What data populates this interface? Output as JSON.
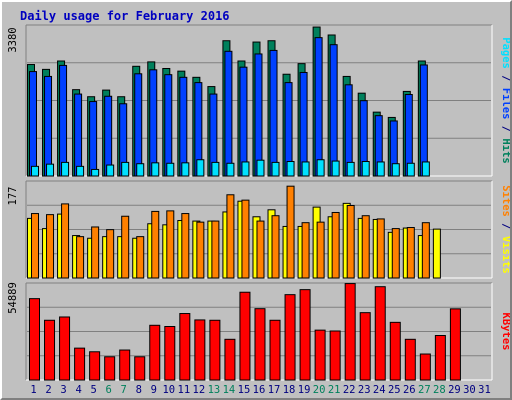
{
  "title": "Daily usage for February 2016",
  "colors": {
    "background": "#c0c0c0",
    "hits": "#00805c",
    "files": "#0040ff",
    "pages": "#00e0ff",
    "visits": "#ffff00",
    "sites": "#ff8000",
    "kbytes": "#ff0000",
    "title": "#0000c0",
    "weekend_day": "#00805c",
    "weekday": "#000080"
  },
  "chart_data": [
    {
      "type": "bar",
      "name": "hits-files-pages",
      "ymax_label": "3380",
      "ylim": [
        0,
        3380
      ],
      "right_label_parts": [
        {
          "text": "Pages",
          "color": "#00e0ff"
        },
        {
          "text": " / ",
          "color": "#000080"
        },
        {
          "text": "Files",
          "color": "#0040ff"
        },
        {
          "text": " / ",
          "color": "#000080"
        },
        {
          "text": "Hits",
          "color": "#00805c"
        }
      ],
      "series": [
        {
          "name": "Hits",
          "values": [
            2540,
            2430,
            2620,
            1970,
            1810,
            1960,
            1810,
            2500,
            2600,
            2450,
            2390,
            2250,
            2040,
            3080,
            2620,
            3050,
            3080,
            2320,
            2560,
            3390,
            3210,
            2270,
            1890,
            1460,
            1340,
            1930,
            2620,
            0,
            0
          ]
        },
        {
          "name": "Files",
          "values": [
            2380,
            2270,
            2520,
            1870,
            1700,
            1820,
            1650,
            2330,
            2420,
            2310,
            2250,
            2130,
            1870,
            2840,
            2480,
            2780,
            2860,
            2130,
            2360,
            3150,
            2990,
            2080,
            1720,
            1380,
            1260,
            1860,
            2530,
            0,
            0
          ]
        },
        {
          "name": "Pages",
          "values": [
            230,
            280,
            320,
            230,
            160,
            260,
            320,
            290,
            310,
            300,
            310,
            380,
            320,
            300,
            330,
            370,
            320,
            340,
            330,
            380,
            350,
            320,
            340,
            330,
            290,
            300,
            330,
            0,
            0
          ]
        }
      ]
    },
    {
      "type": "bar",
      "name": "visits-sites",
      "ymax_label": "177",
      "ylim": [
        0,
        177
      ],
      "right_label_parts": [
        {
          "text": "Sites",
          "color": "#ff8000"
        },
        {
          "text": " / ",
          "color": "#000080"
        },
        {
          "text": "Visits",
          "color": "#ffff00"
        }
      ],
      "series": [
        {
          "name": "Visits",
          "values": [
            112,
            93,
            120,
            80,
            75,
            78,
            78,
            75,
            102,
            100,
            108,
            107,
            107,
            124,
            144,
            115,
            128,
            97,
            97,
            133,
            115,
            140,
            112,
            110,
            86,
            94,
            80,
            92,
            0,
            0,
            0
          ]
        },
        {
          "name": "Sites",
          "values": [
            121,
            119,
            139,
            78,
            96,
            91,
            116,
            78,
            125,
            126,
            121,
            105,
            107,
            156,
            146,
            107,
            117,
            172,
            104,
            105,
            123,
            136,
            117,
            111,
            93,
            95,
            104,
            0,
            0,
            0,
            0
          ]
        }
      ]
    },
    {
      "type": "bar",
      "name": "kbytes",
      "ymax_label": "54889",
      "ylim": [
        0,
        54889
      ],
      "right_label_parts": [
        {
          "text": "KBytes",
          "color": "#ff0000"
        }
      ],
      "series": [
        {
          "name": "KBytes",
          "values": [
            47300,
            34800,
            36700,
            18700,
            16600,
            13700,
            17600,
            13700,
            31900,
            31200,
            38700,
            35000,
            34800,
            23800,
            51000,
            41500,
            34800,
            49600,
            52500,
            29100,
            28600,
            56000,
            39200,
            54200,
            33600,
            23800,
            15300,
            26000,
            41400,
            0,
            0
          ]
        }
      ]
    }
  ],
  "x_axis": {
    "labels": [
      "1",
      "2",
      "3",
      "4",
      "5",
      "6",
      "7",
      "8",
      "9",
      "10",
      "11",
      "12",
      "13",
      "14",
      "15",
      "16",
      "17",
      "18",
      "19",
      "20",
      "21",
      "22",
      "23",
      "24",
      "25",
      "26",
      "27",
      "28",
      "29",
      "30",
      "31"
    ],
    "weekend": [
      6,
      7,
      13,
      14,
      20,
      21,
      27,
      28
    ]
  }
}
